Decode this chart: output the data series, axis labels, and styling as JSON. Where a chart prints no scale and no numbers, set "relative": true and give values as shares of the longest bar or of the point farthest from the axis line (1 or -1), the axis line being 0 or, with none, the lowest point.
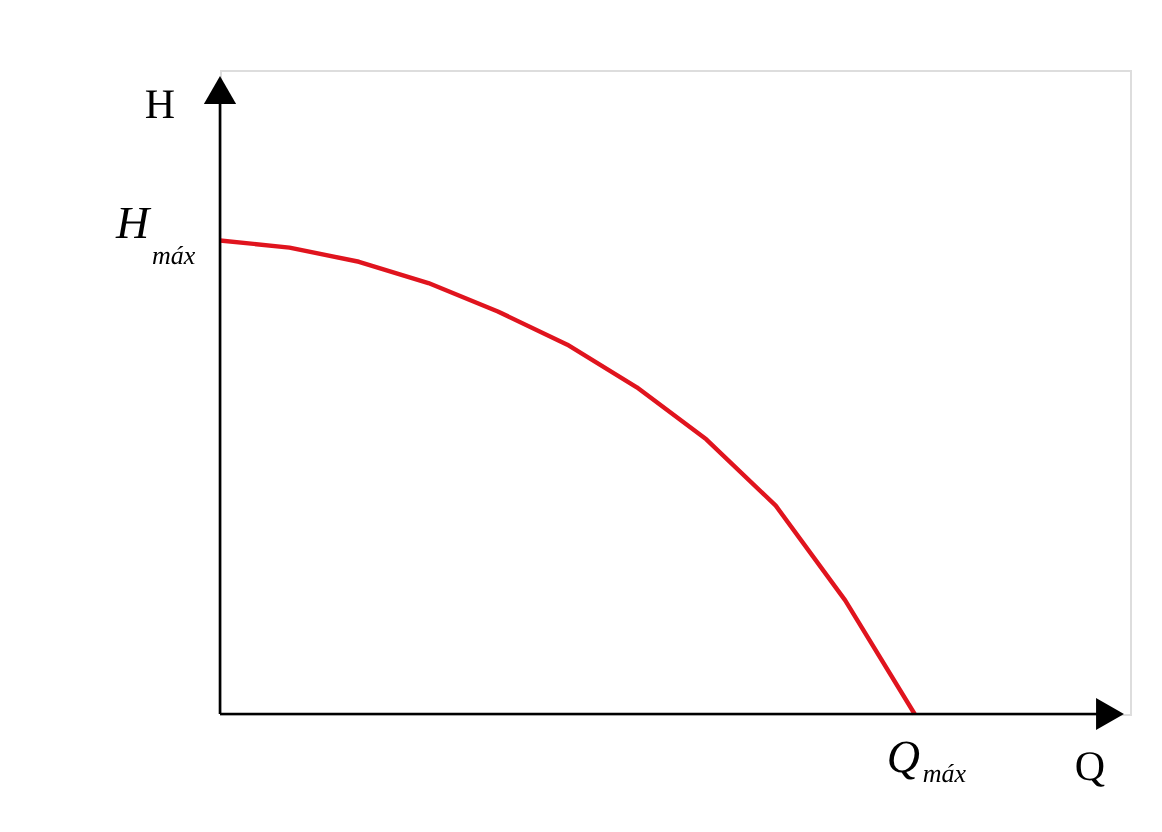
{
  "chart_data": {
    "type": "line",
    "relative": true,
    "xlabel": "Q",
    "ylabel": "H",
    "categories": [
      null,
      null,
      null,
      null,
      null,
      null,
      null,
      null,
      null,
      null,
      null
    ],
    "series": [
      {
        "color": "#e0141e",
        "values": [
          1,
          0.985,
          0.955,
          0.91,
          0.85,
          0.78,
          0.69,
          0.58,
          0.44,
          0.24,
          0
        ]
      }
    ],
    "annotations": [
      "H$_{máx}$",
      "Q$_{máx}$"
    ],
    "line_style": "solid"
  }
}
